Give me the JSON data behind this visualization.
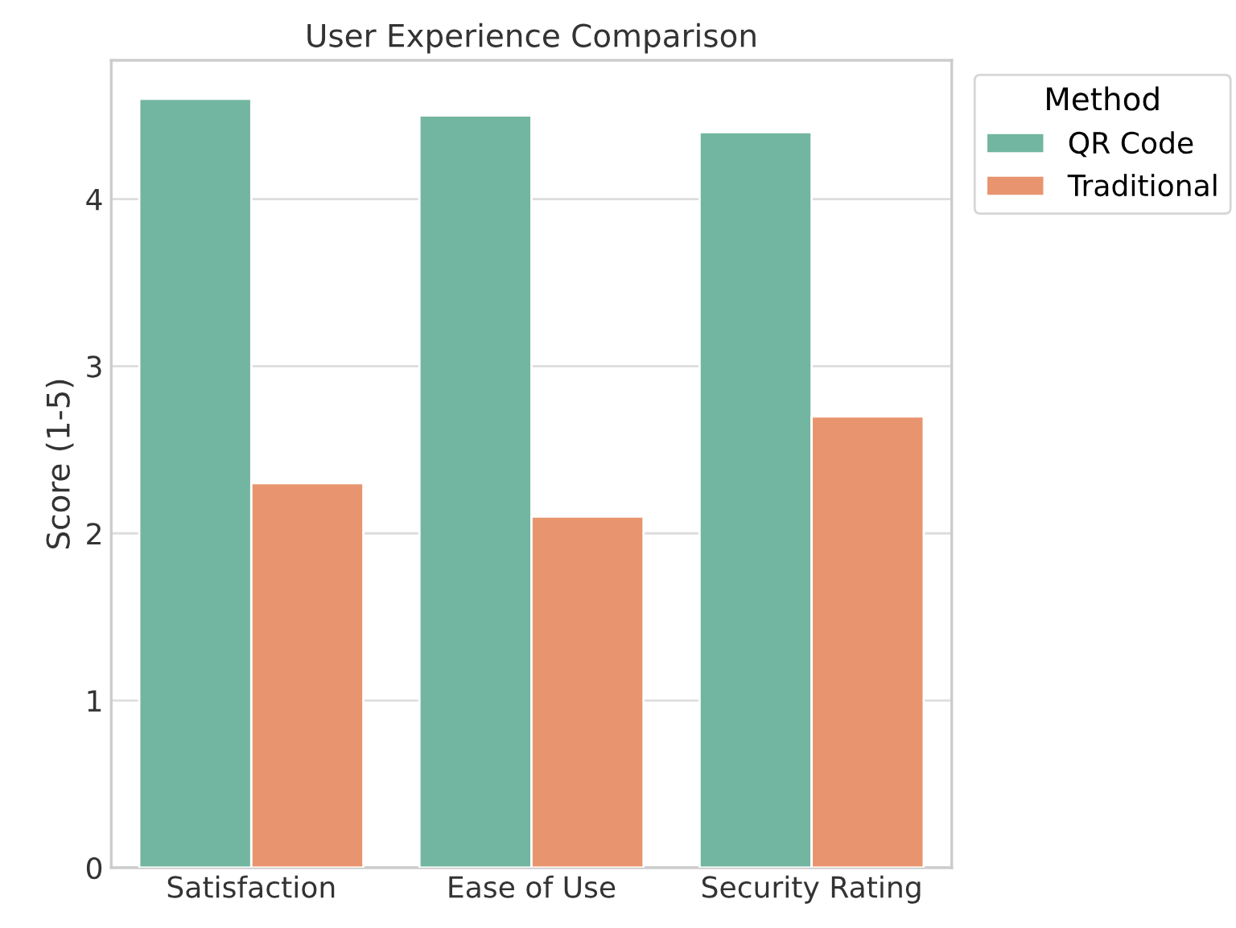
{
  "chart_data": {
    "type": "bar",
    "title": "User Experience Comparison",
    "ylabel": "Score (1-5)",
    "legend_title": "Method",
    "categories": [
      "Satisfaction",
      "Ease of Use",
      "Security Rating"
    ],
    "series": [
      {
        "name": "QR Code",
        "color": "#72b6a1",
        "values": [
          4.6,
          4.5,
          4.4
        ]
      },
      {
        "name": "Traditional",
        "color": "#e8956f",
        "values": [
          2.3,
          2.1,
          2.7
        ]
      }
    ],
    "ylim": [
      0,
      4.83
    ],
    "yticks": [
      0,
      1,
      2,
      3,
      4
    ],
    "grid": "y",
    "legend": "top right"
  }
}
